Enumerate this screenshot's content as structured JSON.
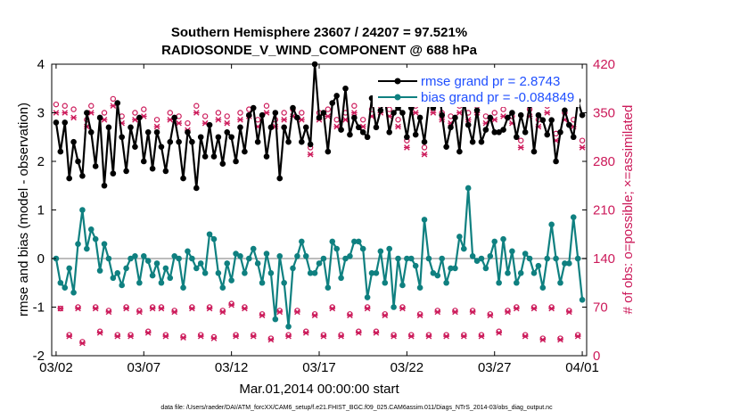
{
  "chart_data": {
    "type": "line",
    "title_line1": "Southern Hemisphere 23607 / 24207 = 97.521%",
    "title_line2": "RADIOSONDE_V_WIND_COMPONENT @ 688 hPa",
    "xlabel": "Mar.01,2014 00:00:00 start",
    "ylabel_left": "rmse and bias (model - observation)",
    "ylabel_right": "# of obs: o=possible; ×=assimilated",
    "footnote": "data file: /Users/raeder/DAI/ATM_forcXX/CAM6_setup/f.e21.FHIST_BGC.f09_025.CAM6assim.011/Diags_NTrS_2014-03/obs_diag_output.nc",
    "x_tick_labels": [
      "03/02",
      "03/07",
      "03/12",
      "03/17",
      "03/22",
      "03/27",
      "04/01"
    ],
    "x_tick_values": [
      1,
      6,
      11,
      16,
      21,
      26,
      31
    ],
    "xlim": [
      0.75,
      31.25
    ],
    "ylim_left": [
      -2,
      4
    ],
    "y_ticks_left": [
      "-2",
      "-1",
      "0",
      "1",
      "2",
      "3",
      "4"
    ],
    "ylim_right": [
      0,
      420
    ],
    "y_ticks_right": [
      "0",
      "70",
      "140",
      "210",
      "280",
      "350",
      "420"
    ],
    "legend": {
      "placement": "top-right",
      "entries": [
        "rmse grand pr = 2.8743",
        "bias grand pr = -0.084849"
      ]
    },
    "colors": {
      "rmse": "#000000",
      "bias": "#0f8080",
      "obs": "#cc1a5a",
      "zero_line": "#bdbdbd",
      "legend_text": "#1f4fff"
    },
    "series": [
      {
        "name": "rmse",
        "x": [
          1.0,
          1.25,
          1.5,
          1.75,
          2.0,
          2.25,
          2.5,
          2.75,
          3.0,
          3.25,
          3.5,
          3.75,
          4.0,
          4.25,
          4.5,
          4.75,
          5.0,
          5.25,
          5.5,
          5.75,
          6.0,
          6.25,
          6.5,
          6.75,
          7.0,
          7.25,
          7.5,
          7.75,
          8.0,
          8.25,
          8.5,
          8.75,
          9.0,
          9.25,
          9.5,
          9.75,
          10.0,
          10.25,
          10.5,
          10.75,
          11.0,
          11.25,
          11.5,
          11.75,
          12.0,
          12.25,
          12.5,
          12.75,
          13.0,
          13.25,
          13.5,
          13.75,
          14.0,
          14.25,
          14.5,
          14.75,
          15.0,
          15.25,
          15.5,
          15.75,
          16.0,
          16.25,
          16.5,
          16.75,
          17.0,
          17.25,
          17.5,
          17.75,
          18.0,
          18.25,
          18.5,
          18.75,
          19.0,
          19.25,
          19.5,
          19.75,
          20.0,
          20.25,
          20.5,
          20.75,
          21.0,
          21.25,
          21.5,
          21.75,
          22.0,
          22.25,
          22.5,
          22.75,
          23.0,
          23.25,
          23.5,
          23.75,
          24.0,
          24.25,
          24.5,
          24.75,
          25.0,
          25.25,
          25.5,
          25.75,
          26.0,
          26.25,
          26.5,
          26.75,
          27.0,
          27.25,
          27.5,
          27.75,
          28.0,
          28.25,
          28.5,
          28.75,
          29.0,
          29.25,
          29.5,
          29.75,
          30.0,
          30.25,
          30.5,
          30.75,
          31.0
        ],
        "values": [
          2.8,
          2.2,
          2.8,
          1.65,
          2.4,
          2.0,
          1.7,
          3.0,
          2.6,
          1.9,
          2.9,
          1.5,
          2.7,
          1.75,
          3.2,
          2.5,
          1.8,
          2.7,
          2.3,
          2.9,
          2.0,
          2.6,
          1.85,
          2.6,
          2.3,
          1.8,
          2.4,
          2.9,
          2.4,
          1.65,
          2.6,
          2.4,
          1.45,
          2.5,
          2.1,
          2.75,
          2.1,
          2.5,
          1.95,
          2.6,
          2.5,
          2.0,
          2.7,
          2.2,
          2.95,
          3.1,
          2.4,
          2.95,
          2.1,
          2.7,
          3.0,
          1.65,
          2.7,
          2.4,
          3.1,
          2.9,
          2.4,
          2.7,
          2.35,
          4.0,
          2.9,
          3.0,
          2.2,
          3.2,
          3.35,
          2.65,
          3.5,
          2.55,
          2.9,
          2.7,
          2.6,
          2.5,
          3.3,
          2.7,
          3.05,
          3.3,
          2.6,
          3.0,
          3.1,
          3.0,
          2.5,
          3.1,
          2.55,
          2.9,
          2.4,
          3.2,
          3.1,
          3.85,
          2.95,
          2.3,
          2.7,
          2.9,
          2.2,
          3.25,
          2.75,
          2.4,
          3.05,
          2.4,
          2.65,
          2.9,
          2.6,
          2.6,
          2.65,
          2.9,
          3.0,
          2.5,
          2.95,
          2.6,
          3.15,
          2.2,
          2.95,
          2.85,
          2.55,
          2.85,
          2.0,
          2.6,
          3.05,
          2.75,
          2.5,
          3.25,
          2.95
        ],
        "marker": "*"
      },
      {
        "name": "bias",
        "x": [
          1.0,
          1.25,
          1.5,
          1.75,
          2.0,
          2.25,
          2.5,
          2.75,
          3.0,
          3.25,
          3.5,
          3.75,
          4.0,
          4.25,
          4.5,
          4.75,
          5.0,
          5.25,
          5.5,
          5.75,
          6.0,
          6.25,
          6.5,
          6.75,
          7.0,
          7.25,
          7.5,
          7.75,
          8.0,
          8.25,
          8.5,
          8.75,
          9.0,
          9.25,
          9.5,
          9.75,
          10.0,
          10.25,
          10.5,
          10.75,
          11.0,
          11.25,
          11.5,
          11.75,
          12.0,
          12.25,
          12.5,
          12.75,
          13.0,
          13.25,
          13.5,
          13.75,
          14.0,
          14.25,
          14.5,
          14.75,
          15.0,
          15.25,
          15.5,
          15.75,
          16.0,
          16.25,
          16.5,
          16.75,
          17.0,
          17.25,
          17.5,
          17.75,
          18.0,
          18.25,
          18.5,
          18.75,
          19.0,
          19.25,
          19.5,
          19.75,
          20.0,
          20.25,
          20.5,
          20.75,
          21.0,
          21.25,
          21.5,
          21.75,
          22.0,
          22.25,
          22.5,
          22.75,
          23.0,
          23.25,
          23.5,
          23.75,
          24.0,
          24.25,
          24.5,
          24.75,
          25.0,
          25.25,
          25.5,
          25.75,
          26.0,
          26.25,
          26.5,
          26.75,
          27.0,
          27.25,
          27.5,
          27.75,
          28.0,
          28.25,
          28.5,
          28.75,
          29.0,
          29.25,
          29.5,
          29.75,
          30.0,
          30.25,
          30.5,
          30.75,
          31.0
        ],
        "values": [
          0.0,
          -0.5,
          -0.6,
          -0.2,
          -0.7,
          0.3,
          1.0,
          0.2,
          0.6,
          0.4,
          -0.25,
          0.3,
          0.0,
          -0.4,
          -0.3,
          -0.55,
          -0.2,
          0.0,
          0.05,
          -0.5,
          0.05,
          -0.05,
          -0.35,
          -0.1,
          -0.5,
          -0.2,
          -0.4,
          0.05,
          0.0,
          -0.6,
          0.15,
          0.0,
          -0.2,
          -0.1,
          -0.3,
          0.5,
          0.4,
          -0.3,
          -0.6,
          -0.1,
          -0.45,
          0.1,
          0.05,
          -0.3,
          0.0,
          0.2,
          -0.1,
          -0.5,
          0.1,
          -0.3,
          -1.25,
          0.05,
          -0.5,
          -1.4,
          -0.2,
          0.05,
          0.35,
          0.05,
          -0.3,
          -0.3,
          -0.1,
          0.0,
          -0.6,
          0.35,
          0.2,
          -0.4,
          0.0,
          0.05,
          0.35,
          0.35,
          0.2,
          -0.8,
          -0.3,
          -0.3,
          0.15,
          -0.5,
          0.2,
          -1.0,
          0.0,
          -0.55,
          0.0,
          0.0,
          -0.15,
          -0.6,
          0.8,
          0.0,
          -0.3,
          -0.35,
          0.0,
          -0.5,
          -0.2,
          -0.2,
          0.45,
          0.2,
          1.45,
          0.05,
          -0.05,
          0.0,
          -0.2,
          0.05,
          0.35,
          -0.5,
          0.4,
          -0.3,
          0.15,
          -0.5,
          -0.3,
          0.1,
          0.0,
          -0.3,
          -0.15,
          -0.6,
          0.0,
          0.7,
          0.0,
          -0.5,
          -0.1,
          -0.1,
          0.85,
          0.0,
          -0.85
        ],
        "marker": "*"
      },
      {
        "name": "obs_possible",
        "axis": "right",
        "x": [
          1.0,
          1.25,
          1.5,
          1.75,
          2.0,
          2.25,
          2.5,
          2.75,
          3.0,
          3.25,
          3.5,
          3.75,
          4.0,
          4.25,
          4.5,
          4.75,
          5.0,
          5.25,
          5.5,
          5.75,
          6.0,
          6.25,
          6.5,
          6.75,
          7.0,
          7.25,
          7.5,
          7.75,
          8.0,
          8.25,
          8.5,
          8.75,
          9.0,
          9.25,
          9.5,
          9.75,
          10.0,
          10.25,
          10.5,
          10.75,
          11.0,
          11.25,
          11.5,
          11.75,
          12.0,
          12.25,
          12.5,
          12.75,
          13.0,
          13.25,
          13.5,
          13.75,
          14.0,
          14.25,
          14.5,
          14.75,
          15.0,
          15.25,
          15.5,
          15.75,
          16.0,
          16.25,
          16.5,
          16.75,
          17.0,
          17.25,
          17.5,
          17.75,
          18.0,
          18.25,
          18.5,
          18.75,
          19.0,
          19.25,
          19.5,
          19.75,
          20.0,
          20.25,
          20.5,
          20.75,
          21.0,
          21.25,
          21.5,
          21.75,
          22.0,
          22.25,
          22.5,
          22.75,
          23.0,
          23.25,
          23.5,
          23.75,
          24.0,
          24.25,
          24.5,
          24.75,
          25.0,
          25.25,
          25.5,
          25.75,
          26.0,
          26.25,
          26.5,
          26.75,
          27.0,
          27.25,
          27.5,
          27.75,
          28.0,
          28.25,
          28.5,
          28.75,
          29.0,
          29.25,
          29.5,
          29.75,
          30.0,
          30.25,
          30.5,
          30.75,
          31.0
        ],
        "values": [
          362,
          68,
          360,
          30,
          355,
          70,
          20,
          340,
          360,
          70,
          35,
          350,
          65,
          370,
          30,
          345,
          70,
          30,
          350,
          65,
          355,
          35,
          70,
          340,
          70,
          30,
          350,
          65,
          345,
          28,
          335,
          70,
          360,
          30,
          345,
          70,
          27,
          350,
          65,
          345,
          75,
          30,
          350,
          70,
          355,
          30,
          340,
          60,
          360,
          25,
          340,
          65,
          350,
          30,
          355,
          65,
          350,
          35,
          300,
          60,
          350,
          30,
          355,
          70,
          340,
          30,
          350,
          60,
          360,
          35,
          340,
          70,
          355,
          35,
          360,
          60,
          355,
          30,
          340,
          70,
          310,
          30,
          360,
          60,
          300,
          30,
          360,
          65,
          350,
          30,
          345,
          65,
          360,
          30,
          350,
          65,
          360,
          30,
          345,
          60,
          350,
          35,
          355,
          65,
          345,
          70,
          310,
          30,
          355,
          70,
          340,
          25,
          360,
          70,
          320,
          25,
          350,
          65,
          340,
          30,
          310
        ],
        "marker": "o"
      },
      {
        "name": "obs_assimilated",
        "axis": "right",
        "x": [
          1.0,
          1.25,
          1.5,
          1.75,
          2.0,
          2.25,
          2.5,
          2.75,
          3.0,
          3.25,
          3.5,
          3.75,
          4.0,
          4.25,
          4.5,
          4.75,
          5.0,
          5.25,
          5.5,
          5.75,
          6.0,
          6.25,
          6.5,
          6.75,
          7.0,
          7.25,
          7.5,
          7.75,
          8.0,
          8.25,
          8.5,
          8.75,
          9.0,
          9.25,
          9.5,
          9.75,
          10.0,
          10.25,
          10.5,
          10.75,
          11.0,
          11.25,
          11.5,
          11.75,
          12.0,
          12.25,
          12.5,
          12.75,
          13.0,
          13.25,
          13.5,
          13.75,
          14.0,
          14.25,
          14.5,
          14.75,
          15.0,
          15.25,
          15.5,
          15.75,
          16.0,
          16.25,
          16.5,
          16.75,
          17.0,
          17.25,
          17.5,
          17.75,
          18.0,
          18.25,
          18.5,
          18.75,
          19.0,
          19.25,
          19.5,
          19.75,
          20.0,
          20.25,
          20.5,
          20.75,
          21.0,
          21.25,
          21.5,
          21.75,
          22.0,
          22.25,
          22.5,
          22.75,
          23.0,
          23.25,
          23.5,
          23.75,
          24.0,
          24.25,
          24.5,
          24.75,
          25.0,
          25.25,
          25.5,
          25.75,
          26.0,
          26.25,
          26.5,
          26.75,
          27.0,
          27.25,
          27.5,
          27.75,
          28.0,
          28.25,
          28.5,
          28.75,
          29.0,
          29.25,
          29.5,
          29.75,
          30.0,
          30.25,
          30.5,
          30.75,
          31.0
        ],
        "values": [
          350,
          68,
          350,
          28,
          343,
          68,
          18,
          330,
          350,
          68,
          33,
          340,
          63,
          360,
          28,
          335,
          68,
          28,
          340,
          63,
          345,
          33,
          68,
          330,
          68,
          28,
          340,
          63,
          335,
          26,
          325,
          68,
          350,
          28,
          335,
          68,
          25,
          340,
          63,
          335,
          73,
          28,
          340,
          68,
          345,
          28,
          330,
          58,
          350,
          23,
          330,
          63,
          340,
          28,
          345,
          63,
          340,
          33,
          290,
          58,
          340,
          28,
          345,
          68,
          330,
          28,
          340,
          58,
          350,
          33,
          330,
          68,
          345,
          33,
          350,
          58,
          345,
          28,
          330,
          68,
          300,
          28,
          350,
          58,
          290,
          28,
          350,
          63,
          340,
          28,
          335,
          63,
          350,
          28,
          340,
          63,
          350,
          28,
          335,
          58,
          340,
          33,
          345,
          63,
          335,
          68,
          300,
          28,
          345,
          68,
          330,
          23,
          350,
          68,
          310,
          23,
          340,
          63,
          330,
          28,
          300
        ],
        "marker": "x"
      }
    ]
  }
}
